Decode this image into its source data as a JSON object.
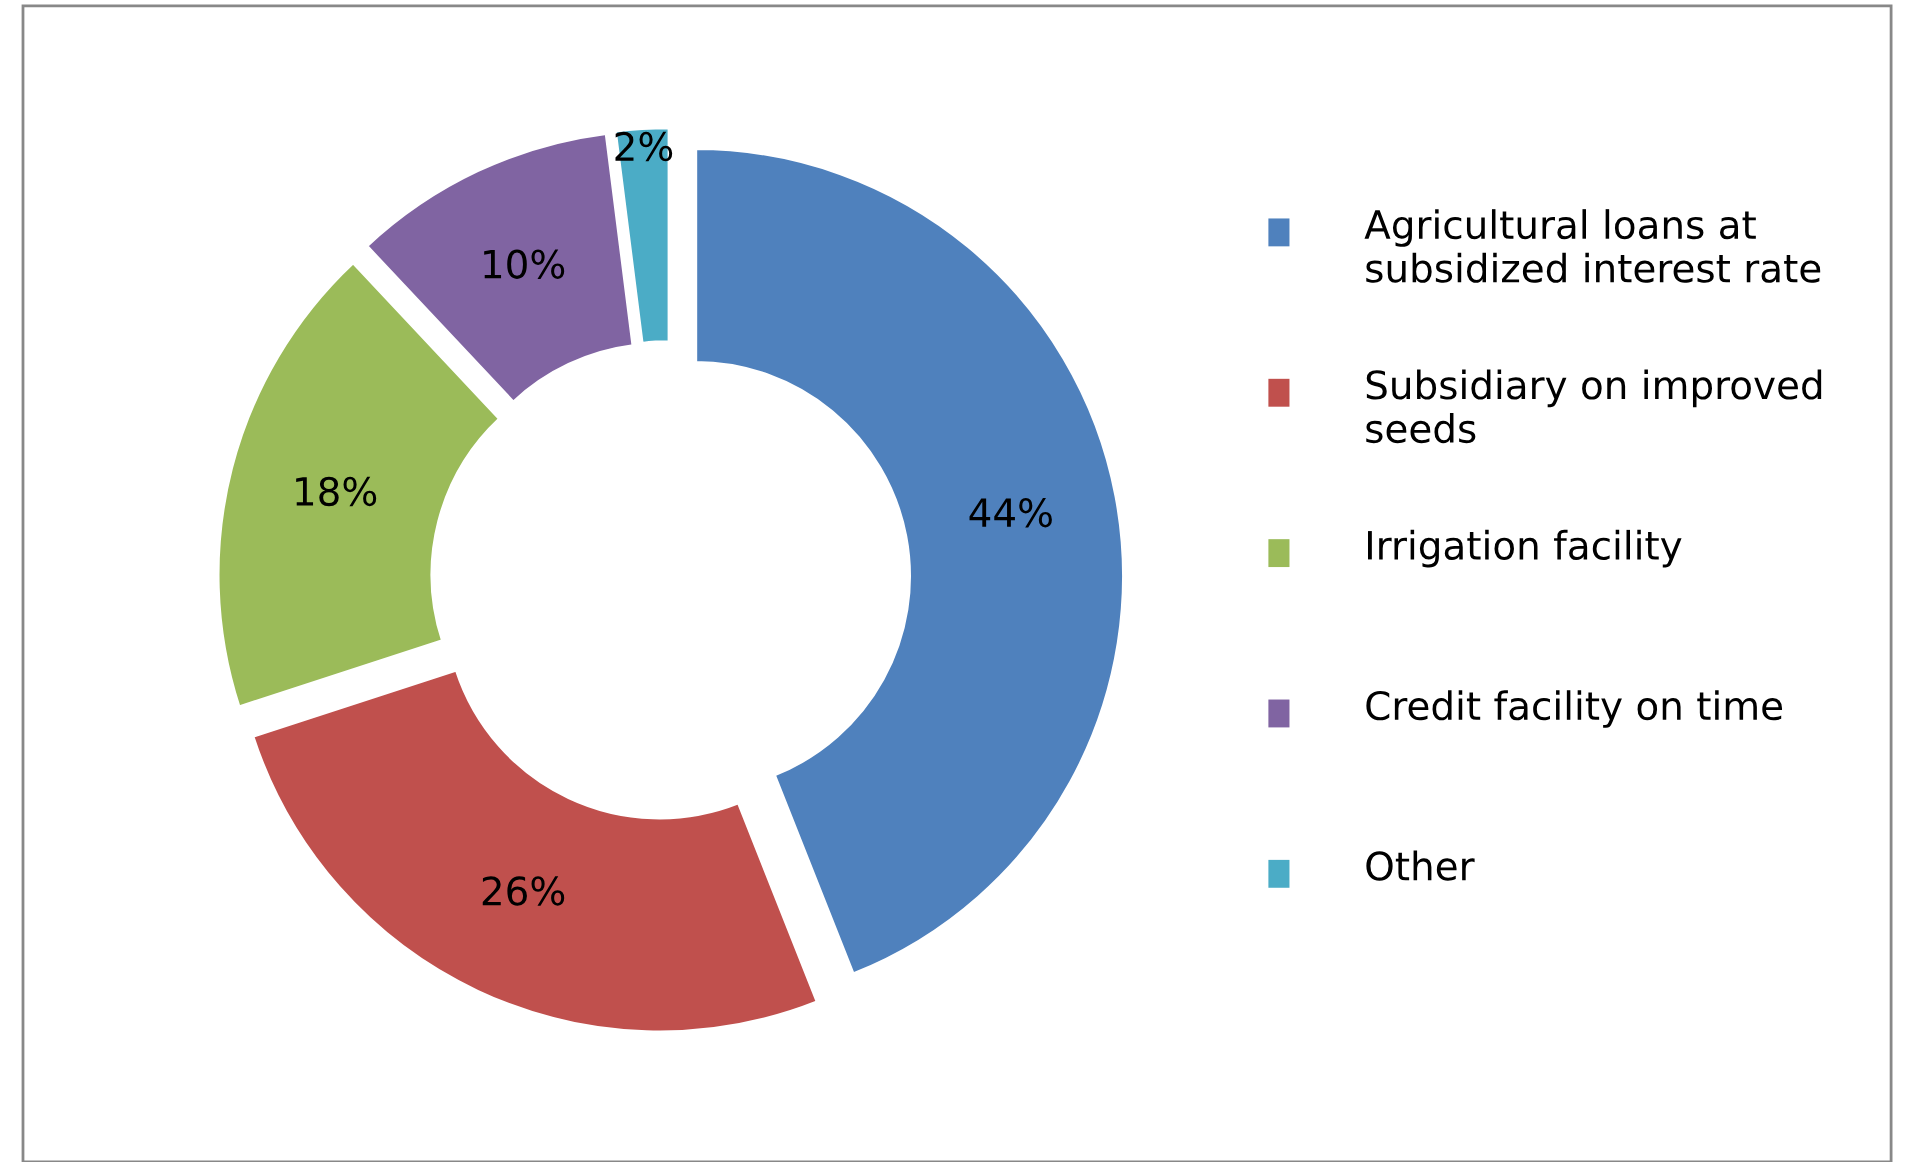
{
  "chart_data": {
    "type": "donut",
    "categories": [
      "Agricultural loans at subsidized interest rate",
      "Subsidiary on improved seeds",
      "Irrigation facility",
      "Credit facility on time",
      "Other"
    ],
    "values": [
      44,
      26,
      18,
      10,
      2
    ],
    "value_labels": [
      "44%",
      "26%",
      "18%",
      "10%",
      "2%"
    ],
    "colors": [
      "#4f81bd",
      "#c0504d",
      "#9bbb59",
      "#8064a2",
      "#4bacc6"
    ],
    "legend": "right"
  }
}
